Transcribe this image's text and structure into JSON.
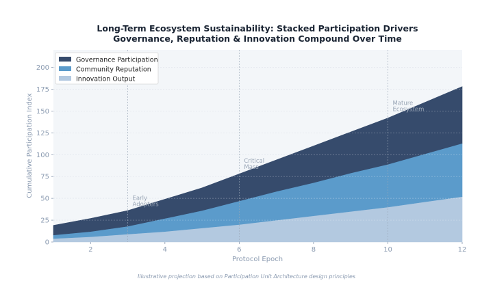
{
  "chart_data": {
    "type": "area",
    "stacked": true,
    "title": "Long-Term Ecosystem Sustainability: Stacked Participation Drivers",
    "subtitle": "Governance, Reputation & Innovation Compound Over Time",
    "xlabel": "Protocol Epoch",
    "ylabel": "Cumulative Participation Index",
    "xlim": [
      1,
      12
    ],
    "ylim": [
      0,
      220
    ],
    "xticks": [
      2,
      4,
      6,
      8,
      10,
      12
    ],
    "yticks": [
      0,
      25,
      50,
      75,
      100,
      125,
      150,
      175,
      200
    ],
    "grid": true,
    "legend_position": "top-left",
    "x": [
      1,
      2,
      3,
      4,
      5,
      6,
      7,
      8,
      9,
      10,
      11,
      12
    ],
    "series": [
      {
        "name": "Innovation Output",
        "color": "#b3c9e0",
        "values": [
          4,
          6,
          9,
          12,
          16,
          20,
          25,
          30,
          35,
          40,
          46,
          52
        ]
      },
      {
        "name": "Community Reputation",
        "color": "#5b9bcb",
        "values": [
          4,
          6,
          9,
          15,
          20,
          27,
          33,
          38,
          44,
          49,
          55,
          61
        ]
      },
      {
        "name": "Governance Participation",
        "color": "#364b6c",
        "values": [
          11,
          15,
          18,
          22,
          26,
          31,
          36,
          42,
          47,
          53,
          59,
          65
        ]
      }
    ],
    "vlines": [
      3,
      6,
      10
    ],
    "annotations": [
      {
        "x": 3,
        "y": 48,
        "lines": [
          "Early",
          "Adopters"
        ]
      },
      {
        "x": 6,
        "y": 91,
        "lines": [
          "Critical",
          "Mass"
        ]
      },
      {
        "x": 10,
        "y": 157,
        "lines": [
          "Mature",
          "Ecosystem"
        ]
      }
    ],
    "caption": "Illustrative projection based on Participation Unit Architecture design principles"
  }
}
